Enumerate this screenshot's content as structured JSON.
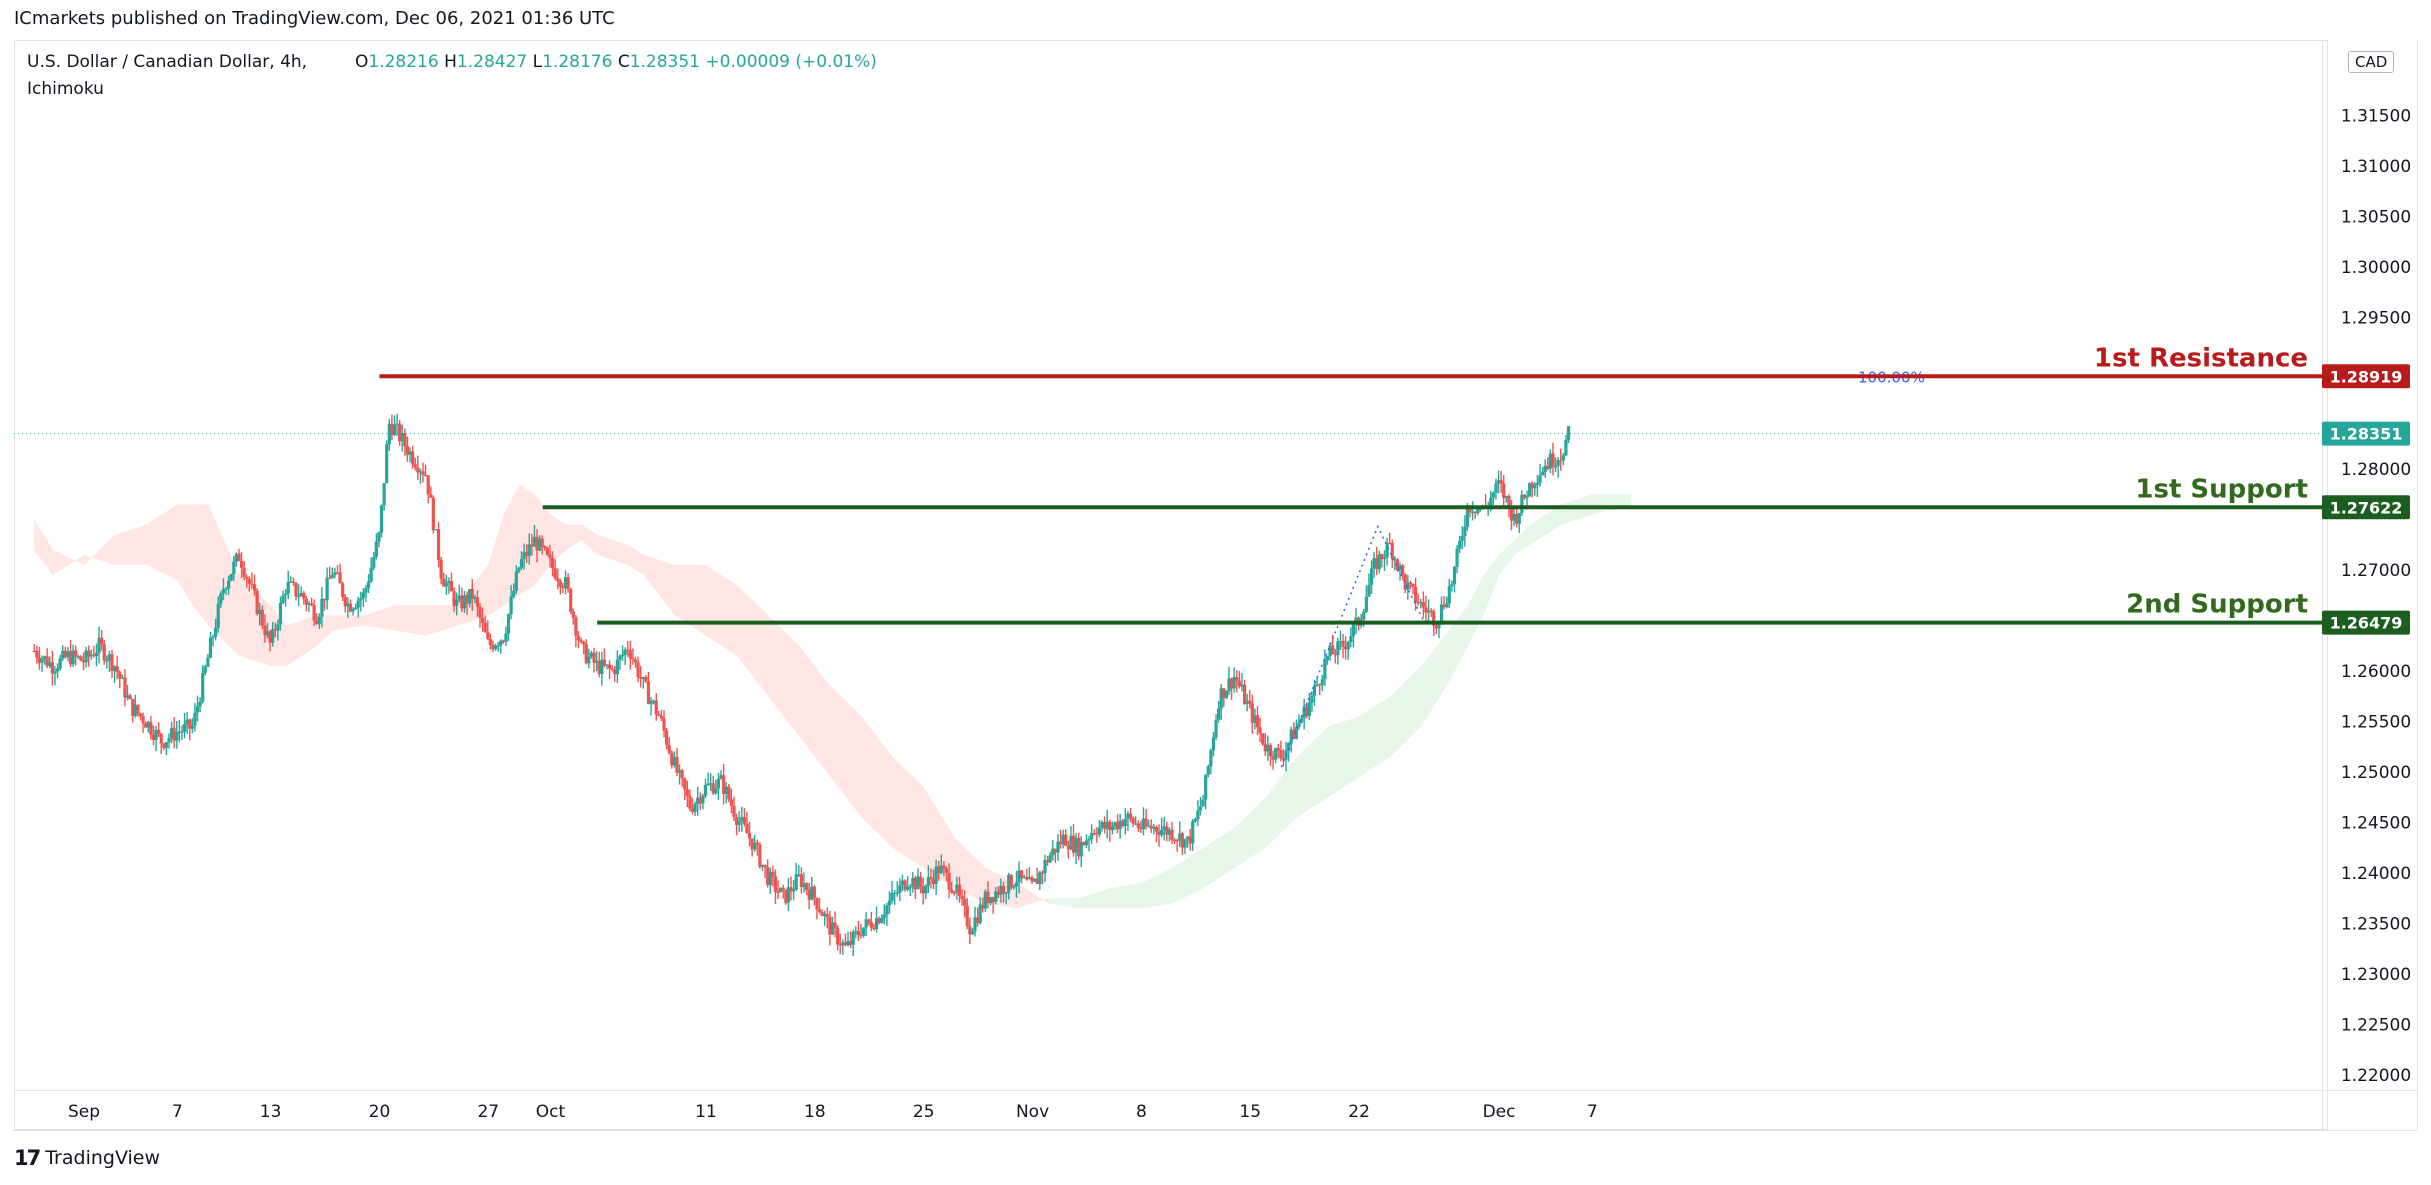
{
  "attribution": "ICmarkets published on TradingView.com, Dec 06, 2021 01:36 UTC",
  "symbol": "U.S. Dollar / Canadian Dollar, 4h,",
  "indicator": "Ichimoku",
  "ohlc": {
    "o_label": "O",
    "o": "1.28216",
    "h_label": "H",
    "h": "1.28427",
    "l_label": "L",
    "l": "1.28176",
    "c_label": "C",
    "c": "1.28351",
    "change": "+0.00009 (+0.01%)"
  },
  "currency": "CAD",
  "footer": {
    "logo_mark": "17",
    "logo_text": "TradingView"
  },
  "colors": {
    "up": "#26a69a",
    "down": "#ef5350",
    "resistance": "#b71c1c",
    "support": "#1b5e20",
    "support_text": "#33691e",
    "last_price": "#26a69a",
    "cloud_bull": "#e8f5e9",
    "cloud_bear": "#ffe5e3",
    "fib": "#2962ff"
  },
  "chart_data": {
    "type": "candlestick",
    "ylim": [
      1.2185,
      1.3225
    ],
    "y_ticks": [
      "1.31500",
      "1.31000",
      "1.30500",
      "1.30000",
      "1.29500",
      "1.29000",
      "1.28500",
      "1.28000",
      "1.27500",
      "1.27000",
      "1.26500",
      "1.26000",
      "1.25500",
      "1.25000",
      "1.24500",
      "1.24000",
      "1.23500",
      "1.23000",
      "1.22500",
      "1.22000"
    ],
    "x_ticks": [
      {
        "label": "Sep",
        "day": 0
      },
      {
        "label": "7",
        "day": 6
      },
      {
        "label": "13",
        "day": 12
      },
      {
        "label": "20",
        "day": 19
      },
      {
        "label": "27",
        "day": 26
      },
      {
        "label": "Oct",
        "day": 30
      },
      {
        "label": "11",
        "day": 40
      },
      {
        "label": "18",
        "day": 47
      },
      {
        "label": "25",
        "day": 54
      },
      {
        "label": "Nov",
        "day": 61
      },
      {
        "label": "8",
        "day": 68
      },
      {
        "label": "15",
        "day": 75
      },
      {
        "label": "22",
        "day": 82
      },
      {
        "label": "Dec",
        "day": 91
      },
      {
        "label": "7",
        "day": 97
      }
    ],
    "levels": [
      {
        "name": "1st Resistance",
        "value": 1.28919,
        "value_label": "1.28919",
        "kind": "resistance",
        "start_day": 19
      },
      {
        "name": "1st Support",
        "value": 1.27622,
        "value_label": "1.27622",
        "kind": "support",
        "start_day": 29.5
      },
      {
        "name": "2nd Support",
        "value": 1.26479,
        "value_label": "1.26479",
        "kind": "support",
        "start_day": 33
      }
    ],
    "last_price": {
      "value": 1.28351,
      "label": "1.28351"
    },
    "fib_label": "100.00%",
    "price_path": [
      [
        -3.2,
        1.262
      ],
      [
        -2,
        1.2605
      ],
      [
        -1,
        1.2615
      ],
      [
        0,
        1.261
      ],
      [
        1,
        1.2625
      ],
      [
        2,
        1.2605
      ],
      [
        3,
        1.2565
      ],
      [
        4,
        1.255
      ],
      [
        5,
        1.253
      ],
      [
        6,
        1.254
      ],
      [
        7,
        1.2545
      ],
      [
        8,
        1.2615
      ],
      [
        9,
        1.2685
      ],
      [
        10,
        1.2715
      ],
      [
        11,
        1.267
      ],
      [
        12,
        1.2625
      ],
      [
        13,
        1.2685
      ],
      [
        14,
        1.2675
      ],
      [
        15,
        1.2655
      ],
      [
        16,
        1.27
      ],
      [
        17,
        1.2665
      ],
      [
        18,
        1.2675
      ],
      [
        19,
        1.2735
      ],
      [
        19.6,
        1.2845
      ],
      [
        20,
        1.284
      ],
      [
        21,
        1.2815
      ],
      [
        22,
        1.2795
      ],
      [
        23,
        1.2695
      ],
      [
        24,
        1.2665
      ],
      [
        25,
        1.2675
      ],
      [
        26,
        1.2625
      ],
      [
        27,
        1.2635
      ],
      [
        28,
        1.2705
      ],
      [
        29,
        1.273
      ],
      [
        30,
        1.2705
      ],
      [
        31,
        1.2685
      ],
      [
        32,
        1.262
      ],
      [
        33,
        1.2605
      ],
      [
        34,
        1.26
      ],
      [
        35,
        1.2625
      ],
      [
        36,
        1.2585
      ],
      [
        37,
        1.2555
      ],
      [
        38,
        1.2505
      ],
      [
        39,
        1.2465
      ],
      [
        40,
        1.2485
      ],
      [
        41,
        1.249
      ],
      [
        42,
        1.2455
      ],
      [
        43,
        1.243
      ],
      [
        44,
        1.2395
      ],
      [
        45,
        1.2375
      ],
      [
        46,
        1.2395
      ],
      [
        47,
        1.2375
      ],
      [
        48,
        1.2345
      ],
      [
        49,
        1.2325
      ],
      [
        50,
        1.2345
      ],
      [
        51,
        1.2355
      ],
      [
        52,
        1.2375
      ],
      [
        53,
        1.2395
      ],
      [
        54,
        1.2385
      ],
      [
        55,
        1.2405
      ],
      [
        56,
        1.2385
      ],
      [
        57,
        1.2345
      ],
      [
        58,
        1.2375
      ],
      [
        59,
        1.2385
      ],
      [
        60,
        1.2395
      ],
      [
        61,
        1.2385
      ],
      [
        62,
        1.2415
      ],
      [
        63,
        1.2435
      ],
      [
        64,
        1.2425
      ],
      [
        65,
        1.2445
      ],
      [
        66,
        1.2445
      ],
      [
        67,
        1.2455
      ],
      [
        68,
        1.2445
      ],
      [
        69,
        1.2445
      ],
      [
        70,
        1.244
      ],
      [
        71,
        1.243
      ],
      [
        72,
        1.2475
      ],
      [
        73,
        1.2575
      ],
      [
        74,
        1.2595
      ],
      [
        75,
        1.256
      ],
      [
        76,
        1.2525
      ],
      [
        77,
        1.2515
      ],
      [
        78,
        1.2545
      ],
      [
        79,
        1.2575
      ],
      [
        80,
        1.2615
      ],
      [
        81,
        1.2625
      ],
      [
        82,
        1.265
      ],
      [
        83,
        1.2705
      ],
      [
        84,
        1.2725
      ],
      [
        85,
        1.2685
      ],
      [
        86,
        1.2665
      ],
      [
        87,
        1.265
      ],
      [
        88,
        1.269
      ],
      [
        89,
        1.2765
      ],
      [
        90,
        1.276
      ],
      [
        91,
        1.2785
      ],
      [
        92,
        1.275
      ],
      [
        93,
        1.2785
      ],
      [
        94,
        1.2805
      ],
      [
        95,
        1.2815
      ],
      [
        95.5,
        1.2835
      ]
    ],
    "cloud": [
      [
        -3.2,
        1.275,
        1.272
      ],
      [
        -2,
        1.272,
        1.2695
      ],
      [
        0,
        1.2705,
        1.2715
      ],
      [
        2,
        1.2735,
        1.2705
      ],
      [
        4,
        1.2745,
        1.2705
      ],
      [
        6,
        1.2765,
        1.269
      ],
      [
        7,
        1.2765,
        1.2665
      ],
      [
        8,
        1.2765,
        1.2645
      ],
      [
        10,
        1.2695,
        1.2615
      ],
      [
        12,
        1.2665,
        1.2605
      ],
      [
        13,
        1.2645,
        1.2605
      ],
      [
        15,
        1.2655,
        1.2625
      ],
      [
        16,
        1.2655,
        1.264
      ],
      [
        18,
        1.2655,
        1.2645
      ],
      [
        20,
        1.2665,
        1.264
      ],
      [
        22,
        1.2665,
        1.2635
      ],
      [
        24,
        1.2665,
        1.2645
      ],
      [
        26,
        1.2705,
        1.2655
      ],
      [
        27,
        1.2755,
        1.2665
      ],
      [
        28,
        1.2785,
        1.2675
      ],
      [
        29,
        1.2775,
        1.2685
      ],
      [
        30,
        1.2755,
        1.2705
      ],
      [
        31,
        1.2745,
        1.272
      ],
      [
        32,
        1.2745,
        1.273
      ],
      [
        33,
        1.2735,
        1.2715
      ],
      [
        35,
        1.2725,
        1.2705
      ],
      [
        36,
        1.2715,
        1.2695
      ],
      [
        38,
        1.2705,
        1.2655
      ],
      [
        40,
        1.2705,
        1.2635
      ],
      [
        42,
        1.2685,
        1.2615
      ],
      [
        44,
        1.2655,
        1.2575
      ],
      [
        46,
        1.2625,
        1.2535
      ],
      [
        48,
        1.2585,
        1.2495
      ],
      [
        50,
        1.2555,
        1.2455
      ],
      [
        52,
        1.2515,
        1.2425
      ],
      [
        54,
        1.2485,
        1.2405
      ],
      [
        56,
        1.2435,
        1.2385
      ],
      [
        58,
        1.2405,
        1.237
      ],
      [
        60,
        1.239,
        1.2365
      ],
      [
        62,
        1.237,
        1.2375
      ],
      [
        64,
        1.2365,
        1.2375
      ],
      [
        66,
        1.2365,
        1.2385
      ],
      [
        68,
        1.2365,
        1.239
      ],
      [
        70,
        1.237,
        1.2405
      ],
      [
        72,
        1.2385,
        1.2425
      ],
      [
        74,
        1.2405,
        1.2445
      ],
      [
        76,
        1.2425,
        1.2475
      ],
      [
        78,
        1.2455,
        1.2515
      ],
      [
        80,
        1.2475,
        1.2545
      ],
      [
        82,
        1.2495,
        1.2555
      ],
      [
        84,
        1.2515,
        1.2575
      ],
      [
        86,
        1.2545,
        1.2605
      ],
      [
        88,
        1.2595,
        1.2645
      ],
      [
        89,
        1.2625,
        1.2665
      ],
      [
        90,
        1.2655,
        1.2695
      ],
      [
        91,
        1.2695,
        1.2715
      ],
      [
        92,
        1.2715,
        1.273
      ],
      [
        93,
        1.2725,
        1.2745
      ],
      [
        94,
        1.2735,
        1.2755
      ],
      [
        95,
        1.2745,
        1.2765
      ],
      [
        97,
        1.2755,
        1.2775
      ],
      [
        99.5,
        1.2765,
        1.2775
      ]
    ]
  }
}
